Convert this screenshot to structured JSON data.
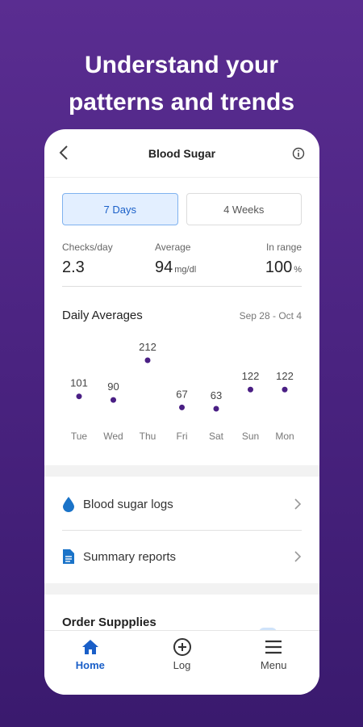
{
  "headline": {
    "line1": "Understand your",
    "line2": "patterns and trends"
  },
  "topbar": {
    "title": "Blood Sugar",
    "back_icon": "chevron-left-icon",
    "info_icon": "info-icon"
  },
  "range_toggle": {
    "options": [
      "7 Days",
      "4 Weeks"
    ],
    "selected": "7 Days"
  },
  "stats": [
    {
      "label": "Checks/day",
      "value": "2.3",
      "unit": ""
    },
    {
      "label": "Average",
      "value": "94",
      "unit": "mg/dl"
    },
    {
      "label": "In range",
      "value": "100",
      "unit": "%"
    }
  ],
  "daily_averages": {
    "title": "Daily Averages",
    "date_range": "Sep 28 - Oct 4"
  },
  "chart_data": {
    "type": "scatter",
    "title": "Daily Averages",
    "categories": [
      "Tue",
      "Wed",
      "Thu",
      "Fri",
      "Sat",
      "Sun",
      "Mon"
    ],
    "values": [
      101,
      90,
      212,
      67,
      63,
      122,
      122
    ],
    "point_color": "#4a1f84"
  },
  "list": [
    {
      "label": "Blood sugar logs",
      "icon": "droplet-icon",
      "chevron": "chevron-right-icon"
    },
    {
      "label": "Summary reports",
      "icon": "document-icon",
      "chevron": "chevron-right-icon"
    }
  ],
  "order_section": {
    "title": "Order Suppplies"
  },
  "tabs": [
    {
      "label": "Home",
      "icon": "home-icon",
      "active": true
    },
    {
      "label": "Log",
      "icon": "plus-circle-icon",
      "active": false
    },
    {
      "label": "Menu",
      "icon": "hamburger-menu-icon",
      "active": false
    }
  ],
  "colors": {
    "background": "#4a2380",
    "accent": "#1a5fc8",
    "chart_point": "#4a1f84",
    "droplet": "#1a73c8"
  }
}
